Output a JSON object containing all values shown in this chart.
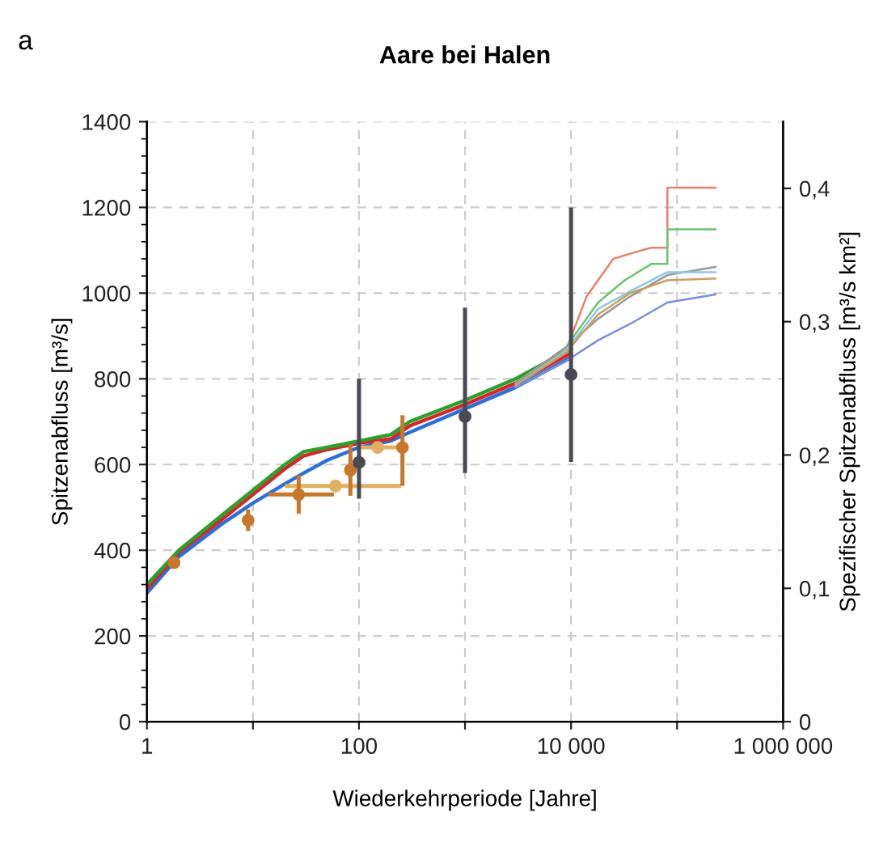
{
  "chart_data": {
    "type": "line",
    "title": "Aare bei Halen",
    "xlabel": "Wiederkehrperiode [Jahre]",
    "ylabel": "Spitzenabfluss [m³/s]",
    "y2label": "Spezifischer Spitzenabfluss [m³/s km²]",
    "annotations": [
      "a"
    ],
    "log": "x",
    "grid": true,
    "line_style": "solid",
    "xlim": [
      1,
      1000000
    ],
    "xticks": [
      1,
      {
        "value": 10,
        "label": null
      },
      {
        "value": 100,
        "label": "100"
      },
      {
        "value": 1000,
        "label": null
      },
      {
        "value": 10000,
        "label": "10 000"
      },
      {
        "value": 100000,
        "label": null
      },
      {
        "value": 1000000,
        "label": "1 000 000"
      }
    ],
    "ylim": [
      0,
      1400
    ],
    "yticks": [
      0,
      200,
      400,
      600,
      800,
      1000,
      1200,
      1400
    ],
    "y2lim": [
      0,
      0.45
    ],
    "y2ticks": [
      0,
      {
        "value": 0.1,
        "label": "0,1"
      },
      {
        "value": 0.2,
        "label": "0,2"
      },
      {
        "value": 0.3,
        "label": "0,3"
      },
      {
        "value": 0.4,
        "label": "0,4"
      }
    ],
    "series": [
      {
        "color": "#2a6fdb",
        "x": [
          1,
          2,
          5,
          10,
          20,
          30,
          50,
          100,
          200,
          300,
          1000,
          3000,
          10000
        ],
        "values": [
          300,
          385,
          460,
          510,
          555,
          580,
          610,
          640,
          655,
          675,
          730,
          780,
          850
        ]
      },
      {
        "color": "#d62728",
        "x": [
          1,
          2,
          5,
          10,
          20,
          30,
          50,
          100,
          200,
          300,
          1000,
          3000,
          10000
        ],
        "values": [
          310,
          395,
          470,
          530,
          590,
          620,
          635,
          650,
          660,
          690,
          740,
          790,
          860
        ]
      },
      {
        "color": "#2ca02c",
        "x": [
          1,
          2,
          5,
          10,
          20,
          30,
          50,
          100,
          200,
          300,
          1000,
          3000,
          10000
        ],
        "values": [
          320,
          400,
          480,
          540,
          600,
          630,
          640,
          655,
          670,
          700,
          750,
          800,
          870
        ]
      },
      {
        "color": "#e8826a",
        "x": [
          3000,
          8900,
          14000,
          25000,
          36000,
          57000,
          81000,
          81000,
          230000
        ],
        "values": [
          790,
          865,
          992,
          1080,
          1092,
          1106,
          1106,
          1246,
          1246
        ]
      },
      {
        "color": "#6cc46c",
        "x": [
          3000,
          8900,
          18000,
          32000,
          57000,
          81000,
          81000,
          230000
        ],
        "values": [
          790,
          873,
          978,
          1030,
          1068,
          1068,
          1149,
          1149
        ]
      },
      {
        "color": "#999999",
        "x": [
          3000,
          8900,
          18000,
          36000,
          81000,
          230000
        ],
        "values": [
          790,
          873,
          940,
          992,
          1042,
          1061
        ]
      },
      {
        "color": "#8fc8e0",
        "x": [
          3000,
          8900,
          18000,
          36000,
          81000,
          230000
        ],
        "values": [
          785,
          865,
          963,
          1004,
          1049,
          1049
        ]
      },
      {
        "color": "#c8a060",
        "x": [
          3000,
          8900,
          18000,
          36000,
          81000,
          230000
        ],
        "values": [
          785,
          860,
          950,
          1000,
          1030,
          1034
        ]
      },
      {
        "color": "#7a8fd8",
        "x": [
          3000,
          8900,
          18000,
          36000,
          81000,
          230000
        ],
        "values": [
          780,
          841,
          890,
          928,
          978,
          997
        ]
      },
      {
        "type": "scatter",
        "color": "#e0b060",
        "marker": "circle",
        "x": [
          60,
          150
        ],
        "values": [
          550,
          640
        ],
        "xerrors": [
          [
            20,
            250
          ],
          [
            100,
            250
          ]
        ]
      },
      {
        "type": "scatter",
        "color": "#c8782a",
        "marker": "circle",
        "x": [
          1.8,
          9,
          27,
          83,
          257
        ],
        "values": [
          371,
          470,
          530,
          587,
          640
        ],
        "errors": [
          null,
          [
            445,
            495
          ],
          [
            485,
            575
          ],
          [
            527,
            647
          ],
          [
            550,
            715
          ]
        ],
        "xerrors": [
          null,
          null,
          [
            14,
            58
          ],
          null,
          null
        ]
      },
      {
        "type": "scatter",
        "color": "#4a4a55",
        "marker": "circle",
        "x": [
          100,
          1000,
          10000
        ],
        "values": [
          605,
          712,
          810
        ],
        "errors": [
          [
            520,
            800
          ],
          [
            580,
            966
          ],
          [
            606,
            1200
          ]
        ]
      }
    ]
  }
}
